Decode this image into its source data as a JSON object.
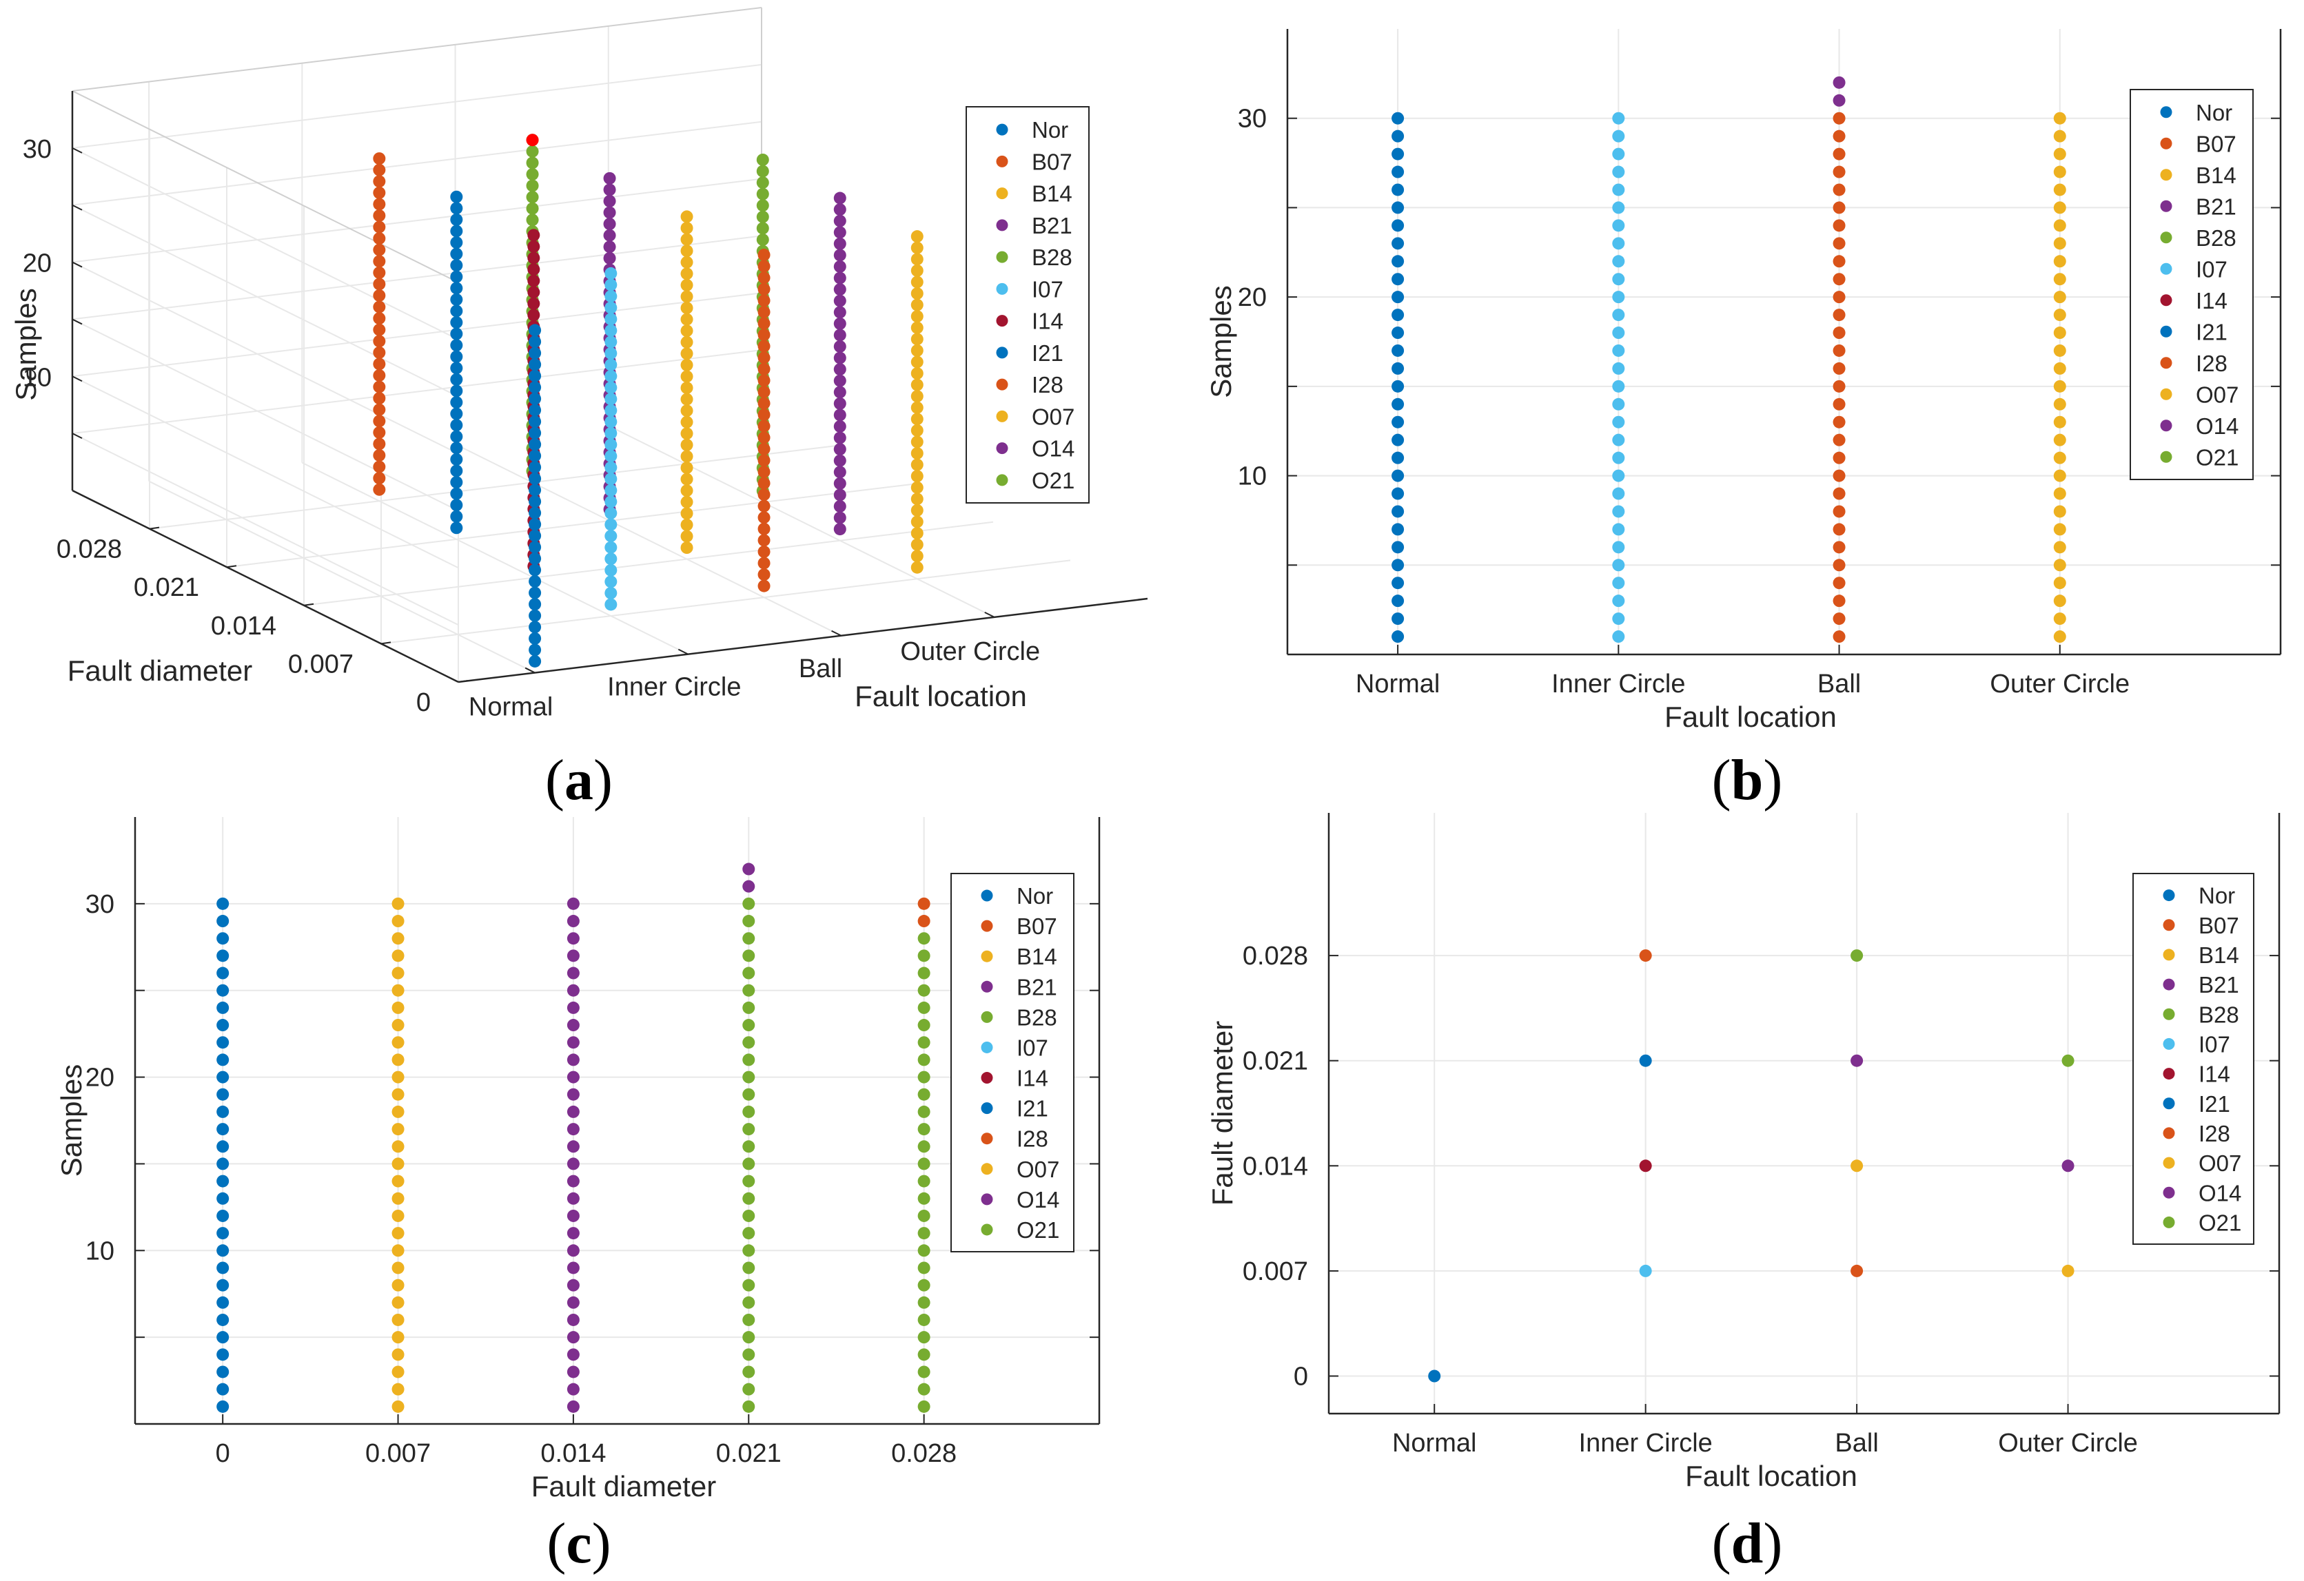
{
  "figure": {
    "legend_entries": [
      "Nor",
      "B07",
      "B14",
      "B21",
      "B28",
      "I07",
      "I14",
      "I21",
      "I28",
      "O07",
      "O14",
      "O21"
    ],
    "legend_colors": [
      "#0072BD",
      "#D95319",
      "#EDB120",
      "#7E2F8E",
      "#77AC30",
      "#4DBEEE",
      "#A2142F",
      "#0072BD",
      "#D95319",
      "#EDB120",
      "#7E2F8E",
      "#77AC30"
    ]
  },
  "chart_data": [
    {
      "panel": "a",
      "type": "scatter",
      "title": "",
      "xlabel": "Fault location",
      "ylabel": "Fault diameter",
      "zlabel": "Samples",
      "caption": "a",
      "x_categories": [
        "Normal",
        "Inner Circle",
        "Ball",
        "Outer Circle"
      ],
      "y_tick_labels": [
        "0",
        "0.007",
        "0.014",
        "0.021",
        "0.028"
      ],
      "z_tick_labels": [
        "10",
        "20",
        "30"
      ],
      "zlim": [
        0,
        35
      ],
      "series": [
        {
          "name": "Nor",
          "color": "#0072BD",
          "x": "Normal",
          "diameter": 0,
          "samples": [
            1,
            30
          ]
        },
        {
          "name": "I07",
          "color": "#4DBEEE",
          "x": "Inner Circle",
          "diameter": 0.007,
          "samples": [
            1,
            30
          ]
        },
        {
          "name": "I14",
          "color": "#A2142F",
          "x": "Inner Circle",
          "diameter": 0.014,
          "samples": [
            1,
            30
          ]
        },
        {
          "name": "I21",
          "color": "#0072BD",
          "x": "Inner Circle",
          "diameter": 0.021,
          "samples": [
            1,
            30
          ]
        },
        {
          "name": "I28",
          "color": "#D95319",
          "x": "Inner Circle",
          "diameter": 0.028,
          "samples": [
            1,
            30
          ]
        },
        {
          "name": "B07",
          "color": "#D95319",
          "x": "Ball",
          "diameter": 0.007,
          "samples": [
            1,
            30
          ]
        },
        {
          "name": "B14",
          "color": "#EDB120",
          "x": "Ball",
          "diameter": 0.014,
          "samples": [
            1,
            30
          ]
        },
        {
          "name": "B21",
          "color": "#7E2F8E",
          "x": "Ball",
          "diameter": 0.021,
          "samples": [
            1,
            30
          ]
        },
        {
          "name": "B28",
          "color": "#77AC30",
          "x": "Ball",
          "diameter": 0.028,
          "samples": [
            1,
            30
          ]
        },
        {
          "name": "O07",
          "color": "#EDB120",
          "x": "Outer Circle",
          "diameter": 0.007,
          "samples": [
            1,
            30
          ]
        },
        {
          "name": "O14",
          "color": "#7E2F8E",
          "x": "Outer Circle",
          "diameter": 0.014,
          "samples": [
            1,
            30
          ]
        },
        {
          "name": "O21",
          "color": "#77AC30",
          "x": "Outer Circle",
          "diameter": 0.021,
          "samples": [
            1,
            30
          ]
        }
      ],
      "highlight": {
        "color": "#FF0000",
        "x": "Ball",
        "diameter": 0.028,
        "sample": 30
      }
    },
    {
      "panel": "b",
      "type": "scatter",
      "title": "",
      "xlabel": "Fault location",
      "ylabel": "Samples",
      "caption": "b",
      "x_categories": [
        "Normal",
        "Inner Circle",
        "Ball",
        "Outer Circle"
      ],
      "xlim": [
        0.5,
        5
      ],
      "ylim": [
        0,
        35
      ],
      "y_ticks": [
        5,
        10,
        15,
        20,
        25,
        30
      ],
      "y_tick_labels": [
        "10",
        "20",
        "30"
      ],
      "series": [
        {
          "name": "Nor",
          "color": "#0072BD",
          "x": 1,
          "y_from": 1,
          "y_to": 30
        },
        {
          "name": "I07",
          "color": "#4DBEEE",
          "x": 2,
          "y_from": 1,
          "y_to": 30
        },
        {
          "name": "B07",
          "color": "#D95319",
          "x": 3,
          "y_from": 1,
          "y_to": 30
        },
        {
          "name": "B21",
          "color": "#7E2F8E",
          "x": 3,
          "y_from": 31,
          "y_to": 32
        },
        {
          "name": "O07",
          "color": "#EDB120",
          "x": 4,
          "y_from": 1,
          "y_to": 30
        }
      ]
    },
    {
      "panel": "c",
      "type": "scatter",
      "title": "",
      "xlabel": "Fault diameter",
      "ylabel": "Samples",
      "caption": "c",
      "x_categories": [
        "0",
        "0.007",
        "0.014",
        "0.021",
        "0.028"
      ],
      "xlim": [
        0.5,
        6
      ],
      "ylim": [
        0,
        35
      ],
      "y_ticks": [
        5,
        10,
        15,
        20,
        25,
        30
      ],
      "y_tick_labels": [
        "10",
        "20",
        "30"
      ],
      "series": [
        {
          "name": "Nor",
          "color": "#0072BD",
          "x": 1,
          "y_from": 1,
          "y_to": 30
        },
        {
          "name": "O07",
          "color": "#EDB120",
          "x": 2,
          "y_from": 1,
          "y_to": 30
        },
        {
          "name": "O14",
          "color": "#7E2F8E",
          "x": 3,
          "y_from": 1,
          "y_to": 30
        },
        {
          "name": "O21",
          "color": "#77AC30",
          "x": 4,
          "y_from": 1,
          "y_to": 30
        },
        {
          "name": "B21",
          "color": "#7E2F8E",
          "x": 4,
          "y_from": 31,
          "y_to": 32
        },
        {
          "name": "B28",
          "color": "#77AC30",
          "x": 5,
          "y_from": 1,
          "y_to": 28
        },
        {
          "name": "I28",
          "color": "#D95319",
          "x": 5,
          "y_from": 29,
          "y_to": 30
        }
      ]
    },
    {
      "panel": "d",
      "type": "scatter",
      "title": "",
      "xlabel": "Fault location",
      "ylabel": "Fault diameter",
      "caption": "d",
      "x_categories": [
        "Normal",
        "Inner Circle",
        "Ball",
        "Outer Circle"
      ],
      "xlim": [
        0.5,
        5
      ],
      "ylim": [
        -0.0025,
        0.0375
      ],
      "y_tick_labels": [
        "0",
        "0.007",
        "0.014",
        "0.021",
        "0.028"
      ],
      "points": [
        {
          "name": "Nor",
          "color": "#0072BD",
          "x": 1,
          "y": 0
        },
        {
          "name": "I07",
          "color": "#4DBEEE",
          "x": 2,
          "y": 0.007
        },
        {
          "name": "I14",
          "color": "#A2142F",
          "x": 2,
          "y": 0.014
        },
        {
          "name": "I21",
          "color": "#0072BD",
          "x": 2,
          "y": 0.021
        },
        {
          "name": "I28",
          "color": "#D95319",
          "x": 2,
          "y": 0.028
        },
        {
          "name": "B07",
          "color": "#D95319",
          "x": 3,
          "y": 0.007
        },
        {
          "name": "B14",
          "color": "#EDB120",
          "x": 3,
          "y": 0.014
        },
        {
          "name": "B21",
          "color": "#7E2F8E",
          "x": 3,
          "y": 0.021
        },
        {
          "name": "B28",
          "color": "#77AC30",
          "x": 3,
          "y": 0.028
        },
        {
          "name": "O07",
          "color": "#EDB120",
          "x": 4,
          "y": 0.007
        },
        {
          "name": "O14",
          "color": "#7E2F8E",
          "x": 4,
          "y": 0.014
        },
        {
          "name": "O21",
          "color": "#77AC30",
          "x": 4,
          "y": 0.021
        }
      ]
    }
  ]
}
